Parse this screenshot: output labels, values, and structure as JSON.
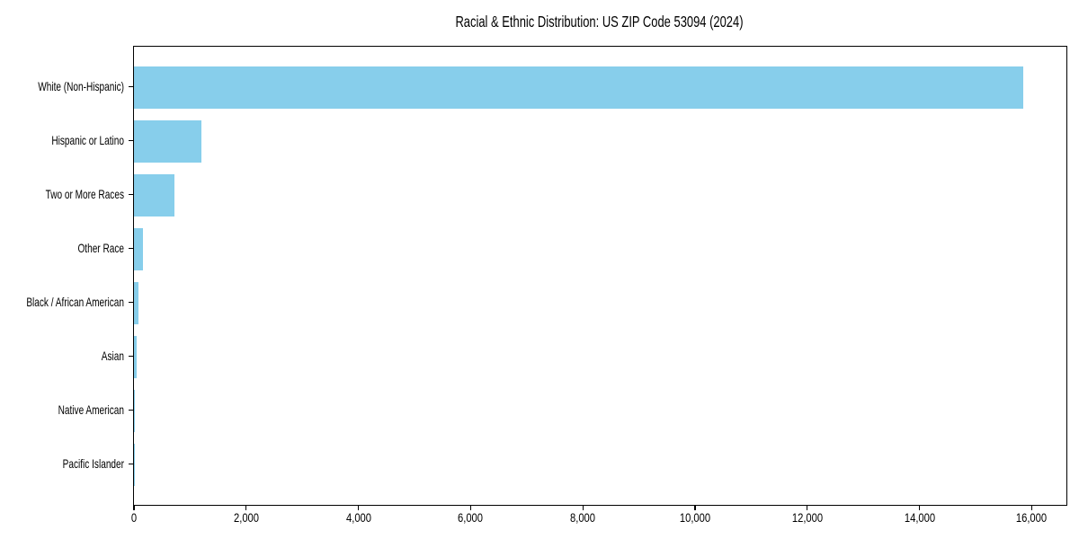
{
  "chart_data": {
    "type": "bar",
    "orientation": "horizontal",
    "title": "Racial & Ethnic Distribution: US ZIP Code 53094 (2024)",
    "categories": [
      "White (Non-Hispanic)",
      "Hispanic or Latino",
      "Two or More Races",
      "Other Race",
      "Black / African American",
      "Asian",
      "Native American",
      "Pacific Islander"
    ],
    "values": [
      15850,
      1200,
      720,
      160,
      85,
      50,
      15,
      5
    ],
    "xlabel": "",
    "ylabel": "",
    "xlim": [
      0,
      16620
    ],
    "xtick_values": [
      0,
      2000,
      4000,
      6000,
      8000,
      10000,
      12000,
      14000,
      16000
    ],
    "xtick_labels": [
      "0",
      "2,000",
      "4,000",
      "6,000",
      "8,000",
      "10,000",
      "12,000",
      "14,000",
      "16,000"
    ],
    "bar_color": "#87CEEB",
    "axis_color": "#000000",
    "background_color": "#FFFFFF",
    "grid": false,
    "legend": null
  }
}
